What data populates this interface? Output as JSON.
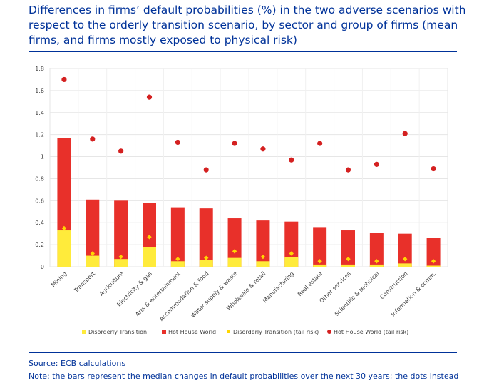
{
  "title": "Differences in firms’ default probabilities (%) in the two adverse scenarios with respect to the orderly transition scenario, by sector and group of firms (mean firms, and firms mostly exposed to physical risk)",
  "source": "Source: ECB calculations",
  "note": "Note: the bars represent the median changes in default probabilities over the next 30 years; the dots instead",
  "colors": {
    "disorderly": "#ffeb3b",
    "hothouse": "#e8302a",
    "disorderly_tail": "#ffd600",
    "hothouse_tail": "#d42020",
    "accent": "#003299",
    "grid": "#e6e6e6",
    "axis_text": "#404040"
  },
  "chart_data": {
    "type": "bar",
    "stacked": true,
    "categories": [
      "Mining",
      "Transport",
      "Agriculture",
      "Electricity & gas",
      "Arts & entertainment",
      "Accommodation & food",
      "Water supply & waste",
      "Wholesale & retail",
      "Manufacturing",
      "Real estate",
      "Other services",
      "Scientific & technical",
      "Construction",
      "Information & comm."
    ],
    "series": [
      {
        "name": "Disorderly Transition",
        "kind": "bar",
        "values": [
          0.33,
          0.1,
          0.07,
          0.18,
          0.05,
          0.06,
          0.08,
          0.05,
          0.09,
          0.02,
          0.02,
          0.02,
          0.03,
          0.01
        ]
      },
      {
        "name": "Hot House World",
        "kind": "bar",
        "values": [
          1.17,
          0.61,
          0.6,
          0.58,
          0.54,
          0.53,
          0.44,
          0.42,
          0.41,
          0.36,
          0.33,
          0.31,
          0.3,
          0.26
        ]
      },
      {
        "name": "Disorderly Transition (tail risk)",
        "kind": "diamond",
        "values": [
          0.35,
          0.12,
          0.09,
          0.27,
          0.07,
          0.08,
          0.14,
          0.09,
          0.12,
          0.05,
          0.07,
          0.05,
          0.07,
          0.05
        ]
      },
      {
        "name": "Hot House World (tail risk)",
        "kind": "dot",
        "values": [
          1.7,
          1.16,
          1.05,
          1.54,
          1.13,
          0.88,
          1.12,
          1.07,
          0.97,
          1.12,
          0.88,
          0.93,
          1.21,
          0.89
        ]
      }
    ],
    "ylim": [
      0,
      1.8
    ],
    "yticks": [
      "0",
      "0.2",
      "0.4",
      "0.6",
      "0.8",
      "1",
      "1.2",
      "1.4",
      "1.6",
      "1.8"
    ],
    "xlabel": "",
    "ylabel": "",
    "legend_position": "bottom",
    "grid": true
  }
}
